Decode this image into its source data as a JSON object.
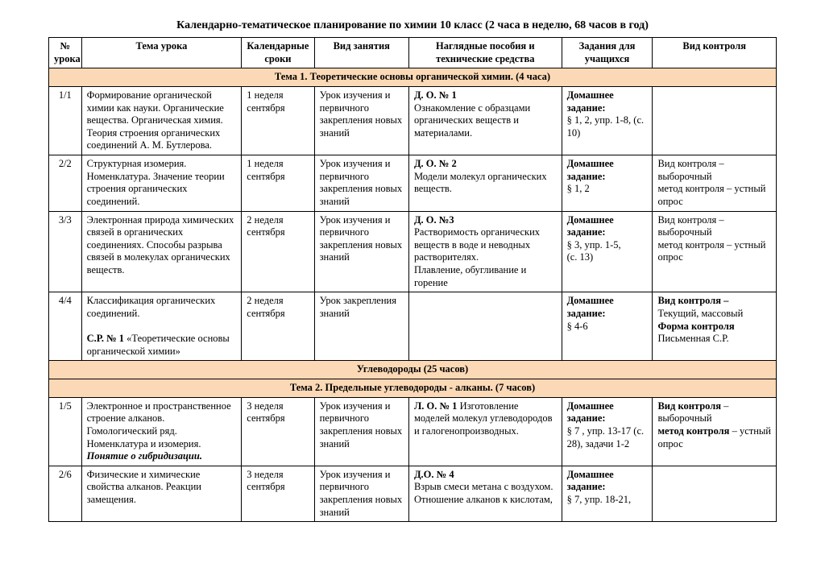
{
  "doc_title": "Календарно-тематическое планирование по химии 10 класс (2 часа в неделю, 68 часов в год)",
  "columns": {
    "num": "№ урока",
    "topic": "Тема урока",
    "date": "Календарные сроки",
    "type": "Вид занятия",
    "aids": "Наглядные пособия и технические средства",
    "tasks": "Задания для учащихся",
    "ctrl": "Вид контроля"
  },
  "col_widths_pct": [
    4.5,
    22,
    10,
    13,
    21,
    12.5,
    17
  ],
  "section_bg": "#fcd9b6",
  "sections": [
    {
      "heading": "Тема 1. Теоретические основы органической химии. (4 часа)",
      "rows": [
        {
          "num": "1/1",
          "topic_html": "Формирование органической химии как науки. Органические вещества. Органическая химия. Теория строения органических соединений А. М. Бутлерова.",
          "date": "1 неделя сентября",
          "type": "Урок изучения и первичного закрепления новых знаний",
          "aids_html": "<b>Д. О. № 1</b><br>Ознакомление с образцами органических веществ и материалами.",
          "tasks_html": "<b>Домашнее задание:</b><br>§ 1, 2, упр. 1-8, (с. 10)",
          "ctrl_html": ""
        },
        {
          "num": "2/2",
          "topic_html": "Структурная изомерия. Номенклатура. Значение теории строения органических соединений.",
          "date": "1 неделя сентября",
          "type": "Урок изучения и первичного закрепления новых знаний",
          "aids_html": "<b>Д. О. № 2</b><br>Модели молекул органических веществ.",
          "tasks_html": "<b>Домашнее задание:</b><br>§ 1, 2",
          "ctrl_html": "Вид контроля – выборочный<br>метод контроля – устный опрос"
        },
        {
          "num": "3/3",
          "topic_html": "Электронная природа химических связей в органических соединениях. Способы разрыва связей в молекулах органических веществ.",
          "date": "2 неделя сентября",
          "type": "Урок изучения и первичного закрепления новых знаний",
          "aids_html": "<b>Д. О. №3</b><br>Растворимость органических веществ в воде и неводных растворителях.<br>Плавление, обугливание и горение",
          "tasks_html": "<b>Домашнее задание:</b><br>§ 3, упр. 1-5,<br>(с. 13)",
          "ctrl_html": "Вид контроля – выборочный<br>метод контроля – устный опрос"
        },
        {
          "num": "4/4",
          "topic_html": "Классификация органических соединений.<br><br><b>С.Р. № 1</b> «Теоретические основы органической химии»",
          "date": "2 неделя сентября",
          "type": "Урок закрепления знаний",
          "aids_html": "",
          "tasks_html": "<b>Домашнее задание:</b><br>§ 4-6",
          "ctrl_html": "<b>Вид контроля –</b> Текущий, массовый<br><b>Форма контроля</b><br>Письменная С.Р."
        }
      ]
    },
    {
      "heading": "Углеводороды (25 часов)",
      "rows": []
    },
    {
      "heading": "Тема 2. Предельные углеводороды  - алканы. (7 часов)",
      "rows": [
        {
          "num": "1/5",
          "topic_html": "Электронное и пространственное строение алканов. Гомологический ряд. Номенклатура и изомерия.<br><b><i>Понятие о гибридизации.</i></b>",
          "date": "3 неделя сентября",
          "type": "Урок изучения и первичного закрепления новых знаний",
          "aids_html": "<b>Л. О. № 1</b> Изготовление моделей молекул углеводородов и галогенопроизводных.",
          "tasks_html": "<b>Домашнее задание:</b><br>§ 7 , упр. 13-17 (с. 28), задачи  1-2",
          "ctrl_html": "<b>Вид контроля</b> – выборочный<br><b>метод контроля</b> – устный опрос"
        },
        {
          "num": "2/6",
          "topic_html": "Физические и химические свойства алканов. Реакции замещения.",
          "date": "3 неделя сентября",
          "type": "Урок изучения и первичного закрепления новых знаний",
          "aids_html": "<b>Д.О. № 4</b><br>Взрыв смеси метана с воздухом. Отношение алканов к кислотам,",
          "tasks_html": "<b>Домашнее задание:</b><br>§ 7, упр. 18-21,",
          "ctrl_html": ""
        }
      ]
    }
  ]
}
